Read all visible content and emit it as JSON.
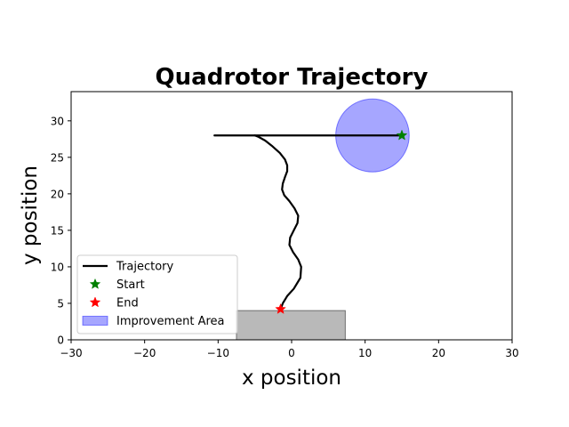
{
  "chart_data": {
    "type": "line",
    "title": "Quadrotor Trajectory",
    "xlabel": "x position",
    "ylabel": "y position",
    "xlim": [
      -30,
      30
    ],
    "ylim": [
      0,
      34
    ],
    "xticks": [
      -30,
      -20,
      -10,
      0,
      10,
      20,
      30
    ],
    "yticks": [
      0,
      5,
      10,
      15,
      20,
      25,
      30
    ],
    "grid": false,
    "legend_position": "lower-left",
    "series": [
      {
        "name": "Trajectory",
        "color": "#000000",
        "x": [
          -10.5,
          -8,
          -6,
          -5,
          -4.5,
          -3.6,
          -2.6,
          -1.6,
          -0.9,
          -0.6,
          -0.6,
          -0.9,
          -1.2,
          -1.3,
          -1.0,
          -0.3,
          0.4,
          0.9,
          0.8,
          0.3,
          -0.2,
          -0.3,
          0.2,
          0.9,
          1.3,
          1.2,
          0.3,
          -0.6,
          -1.2,
          -1.5
        ],
        "y": [
          28.0,
          28.0,
          28.0,
          28.0,
          27.8,
          27.3,
          26.5,
          25.6,
          24.7,
          23.9,
          23.1,
          22.3,
          21.4,
          20.6,
          19.8,
          19.0,
          18.0,
          17.0,
          16.0,
          15.0,
          14.0,
          13.0,
          12.0,
          11.0,
          10.0,
          8.5,
          7.0,
          6.0,
          5.0,
          4.2
        ]
      },
      {
        "name": "",
        "color": "#000000",
        "x": [
          -5,
          15
        ],
        "y": [
          28.0,
          28.0
        ]
      }
    ],
    "markers": [
      {
        "name": "Start",
        "x": 15,
        "y": 28.0,
        "color": "#008000",
        "symbol": "star"
      },
      {
        "name": "End",
        "x": -1.5,
        "y": 4.2,
        "color": "#ff0000",
        "symbol": "star"
      }
    ],
    "regions": [
      {
        "name": "Improvement Area",
        "shape": "circle",
        "cx": 11.0,
        "cy": 28.0,
        "r": 5.0,
        "fill": "#0000ff",
        "alpha": 0.35
      },
      {
        "name": "",
        "shape": "rect",
        "x0": -7.5,
        "x1": 7.3,
        "y0": 0,
        "y1": 4.0,
        "fill": "#808080",
        "alpha": 0.55
      }
    ],
    "legend": [
      {
        "label": "Trajectory",
        "kind": "line",
        "color": "#000000"
      },
      {
        "label": "Start",
        "kind": "star",
        "color": "#008000"
      },
      {
        "label": "End",
        "kind": "star",
        "color": "#ff0000"
      },
      {
        "label": "Improvement Area",
        "kind": "patch",
        "color": "#0000ff"
      }
    ]
  }
}
